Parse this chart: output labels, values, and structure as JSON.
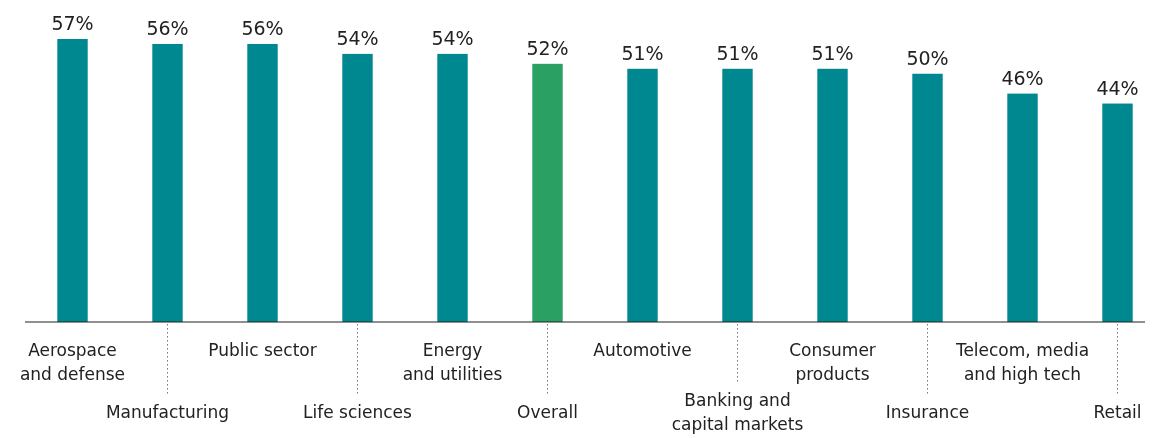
{
  "chart_data": {
    "type": "bar",
    "categories": [
      "Aerospace\nand defense",
      "Manufacturing",
      "Public sector",
      "Life sciences",
      "Energy\nand utilities",
      "Overall",
      "Automotive",
      "Banking and\ncapital markets",
      "Consumer\nproducts",
      "Insurance",
      "Telecom, media\nand high tech",
      "Retail"
    ],
    "values": [
      57,
      56,
      56,
      54,
      54,
      52,
      51,
      51,
      51,
      50,
      46,
      44
    ],
    "value_labels": [
      "57%",
      "56%",
      "56%",
      "54%",
      "54%",
      "52%",
      "51%",
      "51%",
      "51%",
      "50%",
      "46%",
      "44%"
    ],
    "colors": [
      "#008890",
      "#008890",
      "#008890",
      "#008890",
      "#008890",
      "#2aa063",
      "#008890",
      "#008890",
      "#008890",
      "#008890",
      "#008890",
      "#008890"
    ],
    "relative": false
  }
}
